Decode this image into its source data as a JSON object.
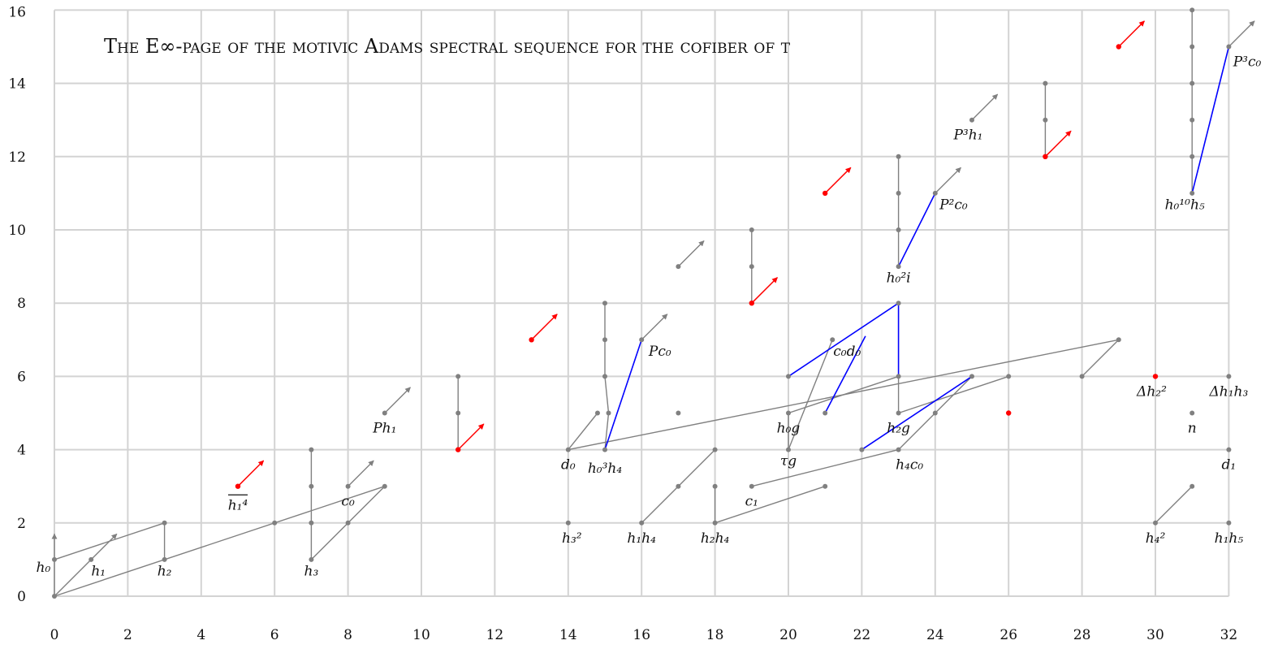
{
  "chart_data": {
    "type": "scatter",
    "title": "The E∞-page of the motivic Adams spectral sequence for the cofiber of τ",
    "xlim": [
      0,
      32
    ],
    "ylim": [
      0,
      16
    ],
    "x_ticks": [
      "0",
      "2",
      "4",
      "6",
      "8",
      "10",
      "12",
      "14",
      "16",
      "18",
      "20",
      "22",
      "24",
      "26",
      "28",
      "30",
      "32"
    ],
    "y_ticks": [
      "0",
      "2",
      "4",
      "6",
      "8",
      "10",
      "12",
      "14",
      "16"
    ],
    "grid": true,
    "colors": {
      "gray": "#808080",
      "red": "#ff0000",
      "blue": "#0000ff",
      "grid": "#d3d3d3"
    },
    "gray_points": [
      [
        0,
        0
      ],
      [
        0,
        1
      ],
      [
        1,
        1
      ],
      [
        3,
        1
      ],
      [
        3,
        2
      ],
      [
        6,
        2
      ],
      [
        7,
        1
      ],
      [
        7,
        2
      ],
      [
        7,
        3
      ],
      [
        7,
        4
      ],
      [
        8,
        2
      ],
      [
        8,
        3
      ],
      [
        9,
        3
      ],
      [
        9,
        5
      ],
      [
        11,
        5
      ],
      [
        11,
        6
      ],
      [
        14,
        2
      ],
      [
        14,
        4
      ],
      [
        14.8,
        5
      ],
      [
        15,
        4
      ],
      [
        15.1,
        5
      ],
      [
        15,
        6
      ],
      [
        15,
        7
      ],
      [
        15,
        8
      ],
      [
        16,
        2
      ],
      [
        16,
        7
      ],
      [
        17,
        3
      ],
      [
        17,
        5
      ],
      [
        17,
        9
      ],
      [
        18,
        2
      ],
      [
        18,
        3
      ],
      [
        18,
        4
      ],
      [
        19,
        9
      ],
      [
        19,
        10
      ],
      [
        19,
        3
      ],
      [
        20,
        4
      ],
      [
        20,
        5
      ],
      [
        20,
        6
      ],
      [
        21,
        3
      ],
      [
        21,
        5
      ],
      [
        21.2,
        7
      ],
      [
        22,
        4
      ],
      [
        23,
        4
      ],
      [
        23,
        5
      ],
      [
        23,
        6
      ],
      [
        23,
        8
      ],
      [
        23,
        9
      ],
      [
        23,
        10
      ],
      [
        23,
        11
      ],
      [
        23,
        12
      ],
      [
        24,
        5
      ],
      [
        24,
        11
      ],
      [
        25,
        6
      ],
      [
        25,
        13
      ],
      [
        26,
        6
      ],
      [
        27,
        13
      ],
      [
        27,
        14
      ],
      [
        28,
        6
      ],
      [
        29,
        7
      ],
      [
        30,
        2
      ],
      [
        31,
        3
      ],
      [
        31,
        5
      ],
      [
        31,
        11
      ],
      [
        31,
        12
      ],
      [
        31,
        13
      ],
      [
        31,
        14
      ],
      [
        31,
        15
      ],
      [
        31,
        16
      ],
      [
        32,
        2
      ],
      [
        32,
        4
      ],
      [
        32,
        6
      ],
      [
        32,
        15
      ]
    ],
    "red_points": [
      [
        5,
        3
      ],
      [
        11,
        4
      ],
      [
        13,
        7
      ],
      [
        19,
        8
      ],
      [
        21,
        11
      ],
      [
        26,
        5
      ],
      [
        27,
        12
      ],
      [
        29,
        15
      ],
      [
        30,
        6
      ]
    ],
    "gray_segments": [
      [
        [
          0,
          0
        ],
        [
          0,
          1
        ]
      ],
      [
        [
          0,
          0
        ],
        [
          1,
          1
        ]
      ],
      [
        [
          0,
          0
        ],
        [
          9,
          3
        ]
      ],
      [
        [
          0,
          1
        ],
        [
          3,
          2
        ]
      ],
      [
        [
          3,
          1
        ],
        [
          3,
          2
        ]
      ],
      [
        [
          7,
          1
        ],
        [
          7,
          4
        ]
      ],
      [
        [
          7,
          1
        ],
        [
          9,
          3
        ]
      ],
      [
        [
          11,
          4
        ],
        [
          11,
          6
        ]
      ],
      [
        [
          14,
          4
        ],
        [
          14.8,
          5
        ]
      ],
      [
        [
          14,
          4
        ],
        [
          29,
          7
        ]
      ],
      [
        [
          15,
          4
        ],
        [
          15.1,
          5
        ]
      ],
      [
        [
          15.1,
          5
        ],
        [
          15,
          6
        ]
      ],
      [
        [
          15,
          6
        ],
        [
          15,
          8
        ]
      ],
      [
        [
          16,
          2
        ],
        [
          18,
          4
        ]
      ],
      [
        [
          18,
          2
        ],
        [
          18,
          3
        ]
      ],
      [
        [
          18,
          2
        ],
        [
          21,
          3
        ]
      ],
      [
        [
          19,
          3
        ],
        [
          23,
          4
        ]
      ],
      [
        [
          19,
          8
        ],
        [
          19,
          10
        ]
      ],
      [
        [
          20,
          4
        ],
        [
          20,
          5
        ]
      ],
      [
        [
          20,
          4
        ],
        [
          21.2,
          7
        ]
      ],
      [
        [
          20,
          5
        ],
        [
          23,
          6
        ]
      ],
      [
        [
          23,
          5
        ],
        [
          23,
          6
        ]
      ],
      [
        [
          23,
          5
        ],
        [
          26,
          6
        ]
      ],
      [
        [
          23,
          4
        ],
        [
          25,
          6
        ]
      ],
      [
        [
          23,
          9
        ],
        [
          23,
          12
        ]
      ],
      [
        [
          27,
          12
        ],
        [
          27,
          14
        ]
      ],
      [
        [
          28,
          6
        ],
        [
          29,
          7
        ]
      ],
      [
        [
          30,
          2
        ],
        [
          31,
          3
        ]
      ],
      [
        [
          31,
          11
        ],
        [
          31,
          16
        ]
      ]
    ],
    "blue_segments": [
      [
        [
          15,
          4
        ],
        [
          16,
          7
        ]
      ],
      [
        [
          20,
          6
        ],
        [
          23,
          8
        ]
      ],
      [
        [
          21,
          5
        ],
        [
          22.1,
          7.1
        ]
      ],
      [
        [
          23,
          8
        ],
        [
          23,
          6
        ]
      ],
      [
        [
          22,
          4
        ],
        [
          25,
          6
        ]
      ],
      [
        [
          23,
          9
        ],
        [
          24,
          11
        ]
      ],
      [
        [
          31,
          11
        ],
        [
          32,
          15
        ]
      ]
    ],
    "gray_arrows": [
      [
        [
          0,
          1
        ],
        [
          0,
          1.7
        ]
      ],
      [
        [
          1,
          1
        ],
        [
          1.7,
          1.7
        ]
      ],
      [
        [
          8,
          3
        ],
        [
          8.7,
          3.7
        ]
      ],
      [
        [
          9,
          5
        ],
        [
          9.7,
          5.7
        ]
      ],
      [
        [
          16,
          7
        ],
        [
          16.7,
          7.7
        ]
      ],
      [
        [
          17,
          9
        ],
        [
          17.7,
          9.7
        ]
      ],
      [
        [
          24,
          11
        ],
        [
          24.7,
          11.7
        ]
      ],
      [
        [
          25,
          13
        ],
        [
          25.7,
          13.7
        ]
      ],
      [
        [
          32,
          15
        ],
        [
          32.7,
          15.7
        ]
      ]
    ],
    "red_arrows": [
      [
        [
          5,
          3
        ],
        [
          5.7,
          3.7
        ]
      ],
      [
        [
          11,
          4
        ],
        [
          11.7,
          4.7
        ]
      ],
      [
        [
          13,
          7
        ],
        [
          13.7,
          7.7
        ]
      ],
      [
        [
          19,
          8
        ],
        [
          19.7,
          8.7
        ]
      ],
      [
        [
          21,
          11
        ],
        [
          21.7,
          11.7
        ]
      ],
      [
        [
          27,
          12
        ],
        [
          27.7,
          12.7
        ]
      ],
      [
        [
          29,
          15
        ],
        [
          29.7,
          15.7
        ]
      ]
    ],
    "labels": [
      {
        "text": "h₀",
        "x": -0.3,
        "y": 0.8
      },
      {
        "text": "h₁",
        "x": 1.2,
        "y": 0.7
      },
      {
        "text": "h₂",
        "x": 3.0,
        "y": 0.7
      },
      {
        "text": "h₃",
        "x": 7.0,
        "y": 0.7
      },
      {
        "text": "c₀",
        "x": 8.0,
        "y": 2.6
      },
      {
        "text": "h₁⁴",
        "x": 5.0,
        "y": 2.5
      },
      {
        "text": "Ph₁",
        "x": 9.0,
        "y": 4.6
      },
      {
        "text": "d₀",
        "x": 14.0,
        "y": 3.6
      },
      {
        "text": "h₃²",
        "x": 14.1,
        "y": 1.6
      },
      {
        "text": "h₀³h₄",
        "x": 15.0,
        "y": 3.5
      },
      {
        "text": "Pc₀",
        "x": 16.5,
        "y": 6.7
      },
      {
        "text": "h₁h₄",
        "x": 16.0,
        "y": 1.6
      },
      {
        "text": "h₂h₄",
        "x": 18.0,
        "y": 1.6
      },
      {
        "text": "c₁",
        "x": 19.0,
        "y": 2.6
      },
      {
        "text": "τg",
        "x": 20.0,
        "y": 3.7
      },
      {
        "text": "h₀g",
        "x": 20.0,
        "y": 4.6
      },
      {
        "text": "c₀d₀",
        "x": 21.6,
        "y": 6.7
      },
      {
        "text": "h₂g",
        "x": 23.0,
        "y": 4.6
      },
      {
        "text": "h₄c₀",
        "x": 23.3,
        "y": 3.6
      },
      {
        "text": "h₀²i",
        "x": 23.0,
        "y": 8.7
      },
      {
        "text": "P²c₀",
        "x": 24.5,
        "y": 10.7
      },
      {
        "text": "P³h₁",
        "x": 24.9,
        "y": 12.6
      },
      {
        "text": "h₀¹⁰h₅",
        "x": 30.8,
        "y": 10.7
      },
      {
        "text": "P³c₀",
        "x": 32.5,
        "y": 14.6
      },
      {
        "text": "Δh₂²",
        "x": 29.9,
        "y": 5.6
      },
      {
        "text": "Δh₁h₃",
        "x": 32.0,
        "y": 5.6
      },
      {
        "text": "n",
        "x": 31.0,
        "y": 4.6
      },
      {
        "text": "d₁",
        "x": 32.0,
        "y": 3.6
      },
      {
        "text": "h₄²",
        "x": 30.0,
        "y": 1.6
      },
      {
        "text": "h₁h₅",
        "x": 32.0,
        "y": 1.6
      }
    ]
  }
}
